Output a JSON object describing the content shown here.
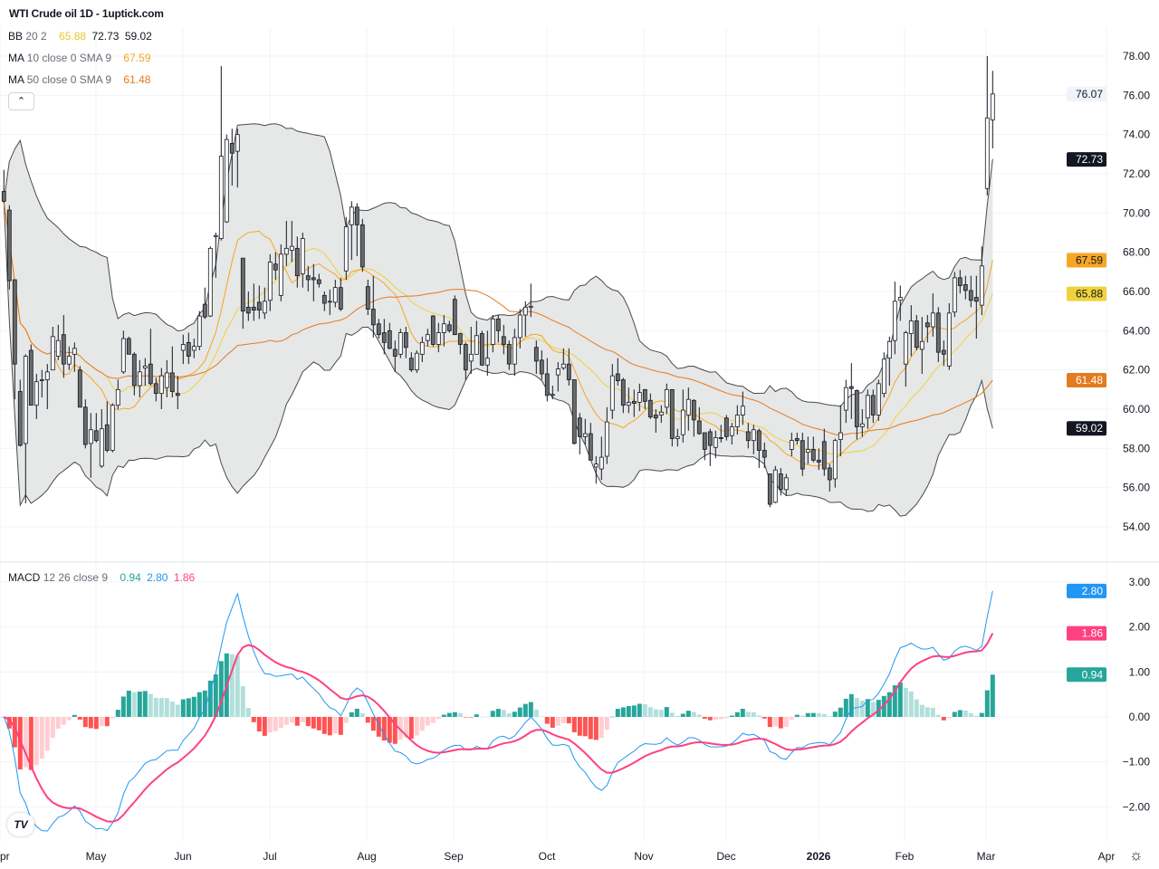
{
  "title": "WTI Crude oil  1D - 1uptick.com",
  "legend": {
    "bb": {
      "name": "BB",
      "params": "20 2",
      "basis": "65.88",
      "upper": "72.73",
      "lower": "59.02"
    },
    "ma10": {
      "name": "MA",
      "params": "10 close 0 SMA 9",
      "value": "67.59"
    },
    "ma50": {
      "name": "MA",
      "params": "50 close 0 SMA 9",
      "value": "61.48"
    },
    "macd": {
      "name": "MACD",
      "params": "12 26 close 9",
      "hist": "0.94",
      "macd": "2.80",
      "signal": "1.86"
    }
  },
  "collapse_icon": "chevron-up-icon",
  "logo_text": "TV",
  "settings_icon": "gear-icon",
  "colors": {
    "bb_basis": "#f0d23c",
    "bb_band": "#4a4a4a",
    "bb_fill": "#e6e7e7",
    "ma10": "#f5a623",
    "ma50": "#e47b1f",
    "bull_body": "#ffffff",
    "bear_body": "#6b6b6b",
    "wick": "#131722",
    "macd_line": "#2196f3",
    "signal_line": "#ff4081",
    "hist_up_strong": "#26a69a",
    "hist_up_weak": "#b2dfdb",
    "hist_down_strong": "#ff5252",
    "hist_down_weak": "#ffcdd2",
    "last_price_tag": "#f0f3fa"
  },
  "chart_data": [
    {
      "type": "candlestick",
      "interval": "1D",
      "ylim": [
        53,
        79
      ],
      "y_ticks": [
        "78.00",
        "76.00",
        "74.00",
        "72.00",
        "70.00",
        "68.00",
        "66.00",
        "64.00",
        "62.00",
        "60.00",
        "58.00",
        "56.00",
        "54.00"
      ],
      "x_ticks": [
        "Apr",
        "May",
        "Jun",
        "Jul",
        "Aug",
        "Sep",
        "Oct",
        "Nov",
        "Dec",
        "2026",
        "Feb",
        "Mar",
        "Apr"
      ],
      "grid": true,
      "last_close": "76.07",
      "tags": {
        "upper": "72.73",
        "ma10": "67.59",
        "basis": "65.88",
        "ma50": "61.48",
        "lower": "59.02"
      },
      "ohlc": [
        [
          71.1,
          72.2,
          70.5,
          70.6
        ],
        [
          70.15,
          70.4,
          66.1,
          66.55
        ],
        [
          66.6,
          66.6,
          60.5,
          62.3
        ],
        [
          60.9,
          61.5,
          58.1,
          58.15
        ],
        [
          58.25,
          62.8,
          55.2,
          62.7
        ],
        [
          63,
          63.3,
          60.2,
          60.2
        ],
        [
          60.2,
          61.8,
          59.5,
          61.4
        ],
        [
          61.5,
          62,
          60.6,
          61.5
        ],
        [
          61.5,
          62.3,
          60,
          61.9
        ],
        [
          62,
          64.2,
          62,
          63.7
        ],
        [
          62.7,
          64.3,
          62.5,
          63.5
        ],
        [
          63.8,
          64.8,
          61.6,
          62.3
        ],
        [
          62.3,
          63.2,
          62,
          62.7
        ],
        [
          62.8,
          63.4,
          61.9,
          63.1
        ],
        [
          62,
          62.2,
          60.1,
          60.1
        ],
        [
          60.1,
          60.5,
          58,
          58.2
        ],
        [
          58.25,
          59.8,
          56.5,
          58.95
        ],
        [
          58.9,
          59.8,
          58.3,
          58.4
        ],
        [
          57.1,
          60,
          57,
          59
        ],
        [
          59.2,
          60.4,
          57.8,
          57.9
        ],
        [
          57.9,
          60.3,
          57.8,
          60.2
        ],
        [
          60.2,
          61.5,
          60,
          61
        ],
        [
          61.9,
          64,
          61.8,
          63.6
        ],
        [
          63.6,
          63.7,
          62.8,
          62.8
        ],
        [
          62.8,
          62.9,
          60.7,
          61.2
        ],
        [
          61.2,
          62.5,
          60.6,
          61.9
        ],
        [
          62.1,
          62.6,
          61.2,
          62.2
        ],
        [
          62.3,
          64.1,
          61.2,
          61.3
        ],
        [
          61.3,
          61.6,
          60.4,
          60.8
        ],
        [
          60.8,
          62.1,
          60,
          61.7
        ],
        [
          61.1,
          62.5,
          60.6,
          61.85
        ],
        [
          61.85,
          63.2,
          60.6,
          60.9
        ],
        [
          60.8,
          61.7,
          60,
          60.7
        ],
        [
          63,
          63.8,
          62.3,
          63.3
        ],
        [
          63.4,
          63.9,
          62.3,
          62.7
        ],
        [
          63,
          63.6,
          62.6,
          63.2
        ],
        [
          63.2,
          65,
          63,
          64.75
        ],
        [
          65.35,
          66.2,
          64.6,
          64.7
        ],
        [
          64.75,
          68.3,
          64.7,
          68.2
        ],
        [
          68.8,
          69,
          66.7,
          68.85
        ],
        [
          68.7,
          77.5,
          68.6,
          72.9
        ],
        [
          69.55,
          74,
          69.5,
          73.75
        ],
        [
          73.55,
          74.3,
          71.4,
          73.05
        ],
        [
          73.15,
          74.3,
          71.3,
          74
        ],
        [
          67.7,
          67.7,
          64.1,
          65
        ],
        [
          65.2,
          66,
          64.5,
          64.9
        ],
        [
          65.2,
          66.4,
          64.5,
          65.05
        ],
        [
          65.45,
          66.3,
          64.6,
          65.05
        ],
        [
          64.9,
          66.2,
          64.6,
          65.5
        ],
        [
          65.55,
          67.9,
          65,
          67.5
        ],
        [
          67.4,
          68,
          66.6,
          67.1
        ],
        [
          65.8,
          68.4,
          65.5,
          67.9
        ],
        [
          67.9,
          69.6,
          67.3,
          68.2
        ],
        [
          68.1,
          69.6,
          67.5,
          68.3
        ],
        [
          68.2,
          68.8,
          66.2,
          66.8
        ],
        [
          66.9,
          69,
          66.2,
          68.7
        ],
        [
          66.8,
          67.3,
          66,
          66.6
        ],
        [
          66.7,
          67.4,
          65.5,
          66.6
        ],
        [
          66.6,
          66.9,
          66.2,
          66.4
        ],
        [
          65.8,
          66,
          65,
          65.4
        ],
        [
          65.5,
          66.1,
          64.8,
          65.5
        ],
        [
          65.45,
          66.6,
          65.2,
          66.2
        ],
        [
          66.2,
          66.7,
          65,
          65.1
        ],
        [
          67.05,
          69.8,
          66.6,
          69.3
        ],
        [
          69.4,
          70.6,
          67.6,
          70.3
        ],
        [
          70.3,
          70.5,
          67.8,
          69.4
        ],
        [
          69.4,
          69.7,
          67,
          67.25
        ],
        [
          66.25,
          66.6,
          64.8,
          65.1
        ],
        [
          65.1,
          66.8,
          63.65,
          64.3
        ],
        [
          64.35,
          64.6,
          63.6,
          63.8
        ],
        [
          63.9,
          64.6,
          62.8,
          63.4
        ],
        [
          64,
          64.4,
          63.05,
          63.1
        ],
        [
          63.05,
          63.5,
          61.9,
          62.7
        ],
        [
          62.8,
          64.1,
          62.6,
          63.9
        ],
        [
          63.9,
          64.2,
          62.6,
          63.15
        ],
        [
          62.6,
          62.9,
          61.9,
          62
        ],
        [
          62,
          63,
          61.85,
          62.85
        ],
        [
          62.8,
          63.7,
          62.4,
          63.4
        ],
        [
          63.5,
          64.1,
          63.2,
          63.8
        ],
        [
          64.75,
          64.8,
          63.2,
          63.3
        ],
        [
          63.3,
          64.4,
          62.9,
          63.9
        ],
        [
          63.9,
          64.8,
          63.2,
          64.35
        ],
        [
          64.3,
          64.5,
          63.9,
          64
        ],
        [
          65.6,
          65.8,
          63.8,
          63.8
        ],
        [
          63.85,
          63.9,
          62.8,
          63.3
        ],
        [
          63.3,
          63.4,
          61.5,
          62
        ],
        [
          62.45,
          64.2,
          61.8,
          62.8
        ],
        [
          62.8,
          64.5,
          62.8,
          63.75
        ],
        [
          63.85,
          64,
          62.2,
          62.25
        ],
        [
          62.25,
          64,
          61.7,
          62.6
        ],
        [
          63.3,
          64.8,
          62.9,
          64.6
        ],
        [
          64.6,
          64.8,
          63.4,
          64
        ],
        [
          63.7,
          64.3,
          62.8,
          63.3
        ],
        [
          63.3,
          63.5,
          62,
          62.3
        ],
        [
          62.3,
          64.1,
          61.7,
          63.65
        ],
        [
          63.65,
          65.1,
          63.1,
          64.8
        ],
        [
          64.8,
          65.5,
          63.7,
          65.2
        ],
        [
          65.2,
          66.4,
          64.7,
          65.25
        ],
        [
          63.15,
          63.5,
          61.8,
          62.45
        ],
        [
          62.5,
          63,
          61.5,
          61.8
        ],
        [
          61.8,
          62.6,
          60.4,
          60.7
        ],
        [
          60.7,
          61.2,
          60.5,
          60.75
        ],
        [
          61.75,
          62.4,
          60.9,
          62.05
        ],
        [
          62.1,
          63.1,
          62,
          62.3
        ],
        [
          62.3,
          63.1,
          61.2,
          61.5
        ],
        [
          61.5,
          61.5,
          58.2,
          58.25
        ],
        [
          59.55,
          59.8,
          57.7,
          58.6
        ],
        [
          58.6,
          59.5,
          58.2,
          58.75
        ],
        [
          58.75,
          59.3,
          57.4,
          57.4
        ],
        [
          57.05,
          57.6,
          56.2,
          57.2
        ],
        [
          56.95,
          58.6,
          56.4,
          57.55
        ],
        [
          57.6,
          60.1,
          57.2,
          59.35
        ],
        [
          59.95,
          62.3,
          59.5,
          61.7
        ],
        [
          61.8,
          62.6,
          61.2,
          61.45
        ],
        [
          61.5,
          61.6,
          59.8,
          60.2
        ],
        [
          60.2,
          61.1,
          59.8,
          60.35
        ],
        [
          60.4,
          61,
          59.6,
          60.3
        ],
        [
          60.35,
          61.3,
          59.9,
          60.85
        ],
        [
          61,
          61,
          60,
          60.4
        ],
        [
          60.45,
          60.8,
          59.5,
          59.6
        ],
        [
          59.7,
          60,
          58.8,
          59.55
        ],
        [
          59.7,
          60.2,
          59.3,
          59.85
        ],
        [
          60.1,
          61.3,
          59.75,
          61
        ],
        [
          61,
          61,
          58.1,
          58.5
        ],
        [
          58.5,
          59,
          58.1,
          58.6
        ],
        [
          58.7,
          61,
          58.3,
          59.95
        ],
        [
          59.7,
          61.1,
          58.9,
          60.5
        ],
        [
          60.45,
          60.5,
          58.6,
          59.45
        ],
        [
          59.4,
          60.1,
          58.7,
          58.75
        ],
        [
          58.8,
          58.8,
          57.4,
          57.95
        ],
        [
          58.85,
          59,
          57.1,
          58.15
        ],
        [
          58.05,
          58.9,
          57.5,
          58.55
        ],
        [
          58.55,
          59.2,
          58.3,
          58.5
        ],
        [
          59.55,
          59.7,
          58.4,
          58.6
        ],
        [
          58.65,
          59.3,
          58.2,
          59.1
        ],
        [
          59.1,
          60.2,
          58.7,
          59.7
        ],
        [
          59.7,
          60.9,
          59.2,
          60.15
        ],
        [
          58.85,
          59.3,
          58,
          58.4
        ],
        [
          58.4,
          59.2,
          57.7,
          58.95
        ],
        [
          58.9,
          59,
          57,
          57.9
        ],
        [
          57.9,
          58.3,
          57,
          57.55
        ],
        [
          56.7,
          56.7,
          55,
          55.15
        ],
        [
          55.25,
          57.1,
          55.2,
          56.9
        ],
        [
          56.7,
          57,
          55.6,
          55.9
        ],
        [
          55.9,
          56.7,
          55.6,
          56.5
        ],
        [
          57.95,
          58.8,
          57.6,
          58.4
        ],
        [
          58.5,
          58.8,
          58.2,
          58.4
        ],
        [
          58.4,
          58.8,
          56.6,
          56.95
        ],
        [
          57.8,
          58.6,
          57.2,
          57.95
        ],
        [
          57.95,
          58.6,
          57.3,
          57.4
        ],
        [
          57.4,
          58,
          56.9,
          57.3
        ],
        [
          58.35,
          59,
          56.6,
          56.95
        ],
        [
          57,
          57.2,
          55.8,
          56.4
        ],
        [
          56.45,
          58.5,
          56,
          58.4
        ],
        [
          58.45,
          60.2,
          57.6,
          58.8
        ],
        [
          59.95,
          61.5,
          59.3,
          61.1
        ],
        [
          61.15,
          62.35,
          59.5,
          61.05
        ],
        [
          60.95,
          61,
          58.45,
          59.1
        ],
        [
          59.1,
          60,
          58.6,
          59.25
        ],
        [
          59.55,
          61,
          59,
          60.7
        ],
        [
          60.7,
          61,
          59.3,
          59.7
        ],
        [
          59.7,
          61.5,
          59.4,
          61.3
        ],
        [
          60.8,
          62.9,
          60.6,
          62.55
        ],
        [
          62.6,
          63.7,
          61.2,
          63.45
        ],
        [
          63.5,
          66.5,
          62.8,
          65.5
        ],
        [
          65.55,
          66.3,
          64.5,
          65.7
        ],
        [
          62.3,
          64,
          61.15,
          63.9
        ],
        [
          63.85,
          65.3,
          62.7,
          64.5
        ],
        [
          64.5,
          64.8,
          63,
          63.15
        ],
        [
          63.05,
          64.7,
          61.8,
          63.45
        ],
        [
          64.4,
          64.8,
          63.4,
          64.2
        ],
        [
          64.2,
          65.9,
          63.7,
          64.9
        ],
        [
          64.9,
          65.2,
          62.4,
          62.9
        ],
        [
          63,
          63.5,
          62.2,
          62.8
        ],
        [
          62.2,
          65.4,
          62,
          64.9
        ],
        [
          64.95,
          67,
          64.7,
          66.7
        ],
        [
          66.7,
          67.1,
          65.9,
          66.3
        ],
        [
          66.35,
          66.8,
          65.6,
          66.05
        ],
        [
          66.05,
          66.8,
          65.2,
          65.55
        ],
        [
          65.7,
          66.8,
          63.6,
          65.5
        ],
        [
          65.3,
          68.3,
          64.8,
          67.3
        ],
        [
          71.25,
          78,
          70.9,
          74.85
        ],
        [
          74.75,
          77.25,
          73.3,
          76.07
        ]
      ]
    },
    {
      "type": "bar+line",
      "name": "MACD 12 26 close 9",
      "ylim": [
        -2.7,
        3.0
      ],
      "y_ticks": [
        "3.00",
        "2.00",
        "1.00",
        "0.00",
        "−1.00",
        "−2.00"
      ],
      "tags": {
        "macd": "2.80",
        "signal": "1.86",
        "hist": "0.94"
      }
    }
  ]
}
